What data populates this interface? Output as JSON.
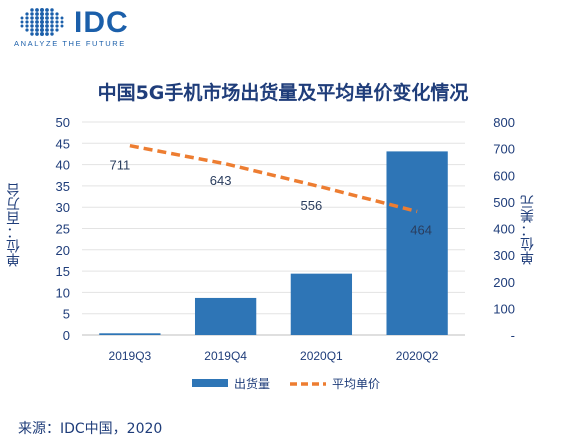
{
  "brand": {
    "name": "IDC",
    "tagline": "ANALYZE THE FUTURE",
    "color": "#1b5faa"
  },
  "source": "来源：IDC中国，2020",
  "chart_data": {
    "type": "bar",
    "title": "中国5G手机市场出货量及平均单价变化情况",
    "categories": [
      "2019Q3",
      "2019Q4",
      "2020Q1",
      "2020Q2"
    ],
    "ylabel_left": "单位：百万台",
    "ylabel_right": "单位：美元",
    "ylim_left": [
      0,
      50
    ],
    "yticks_left": [
      "0",
      "5",
      "10",
      "15",
      "20",
      "25",
      "30",
      "35",
      "40",
      "45",
      "50"
    ],
    "ylim_right": [
      0,
      800
    ],
    "yticks_right": [
      "-",
      "100",
      "200",
      "300",
      "400",
      "500",
      "600",
      "700",
      "800"
    ],
    "grid": true,
    "legend_position": "bottom",
    "series": [
      {
        "name": "出货量",
        "type": "bar",
        "axis": "left",
        "color": "#2e75b6",
        "values": [
          0.4,
          8.7,
          14.4,
          43.1
        ]
      },
      {
        "name": "平均单价",
        "type": "line",
        "style": "dashed",
        "axis": "right",
        "color": "#ed7d31",
        "values": [
          711,
          643,
          556,
          464
        ],
        "labels": [
          "711",
          "643",
          "556",
          "464"
        ]
      }
    ]
  }
}
